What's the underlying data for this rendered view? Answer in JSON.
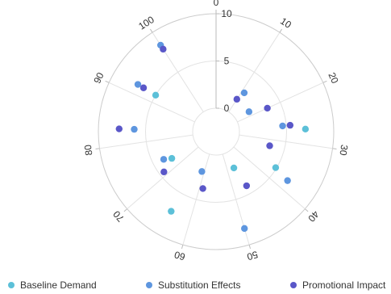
{
  "chart_data": {
    "type": "scatter",
    "coordinate_system": "polar",
    "title": "",
    "angle_axis": {
      "min": 0,
      "max": 110,
      "direction": "clockwise",
      "start": "top",
      "tick_labels": [
        "0",
        "10",
        "20",
        "30",
        "40",
        "50",
        "60",
        "70",
        "80",
        "90",
        "100"
      ]
    },
    "radius_axis": {
      "min": 0,
      "max": 10,
      "inner_radius_fraction": 0.2,
      "tick_labels": [
        "0",
        "5",
        "10"
      ]
    },
    "grid": true,
    "legend_position": "bottom",
    "series": [
      {
        "name": "Baseline Demand",
        "color": "#5cc0d8",
        "points": [
          {
            "angle": 27,
            "radius": 7.0
          },
          {
            "angle": 37,
            "radius": 4.9
          },
          {
            "angle": 47,
            "radius": 1.8
          },
          {
            "angle": 64,
            "radius": 7.2
          },
          {
            "angle": 73,
            "radius": 3.0
          },
          {
            "angle": 92,
            "radius": 5.0
          }
        ]
      },
      {
        "name": "Substitution Effects",
        "color": "#5e96df",
        "points": [
          {
            "angle": 11,
            "radius": 2.6
          },
          {
            "angle": 18,
            "radius": 1.6
          },
          {
            "angle": 26,
            "radius": 4.6
          },
          {
            "angle": 38,
            "radius": 6.7
          },
          {
            "angle": 50,
            "radius": 8.2
          },
          {
            "angle": 61,
            "radius": 2.0
          },
          {
            "angle": 74,
            "radius": 3.8
          },
          {
            "angle": 83,
            "radius": 6.2
          },
          {
            "angle": 92,
            "radius": 7.2
          },
          {
            "angle": 100,
            "radius": 8.4
          }
        ]
      },
      {
        "name": "Promotional Impact",
        "color": "#5a57c8",
        "points": [
          {
            "angle": 10,
            "radius": 1.6
          },
          {
            "angle": 20,
            "radius": 3.5
          },
          {
            "angle": 26,
            "radius": 5.4
          },
          {
            "angle": 32,
            "radius": 3.4
          },
          {
            "angle": 46,
            "radius": 4.1
          },
          {
            "angle": 59,
            "radius": 3.7
          },
          {
            "angle": 71,
            "radius": 4.5
          },
          {
            "angle": 83,
            "radius": 7.8
          },
          {
            "angle": 92,
            "radius": 6.5
          },
          {
            "angle": 100,
            "radius": 7.9
          }
        ]
      }
    ]
  }
}
